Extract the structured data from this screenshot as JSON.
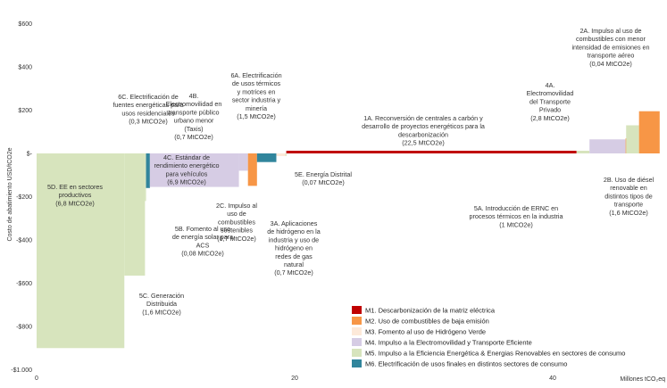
{
  "chart_data": {
    "type": "bar",
    "subtype": "marginal-abatement-cost-curve",
    "xlabel": "Millones tCO₂eq",
    "ylabel": "Costo de abatimiento  USD/tCO2e",
    "xlim": [
      0,
      49
    ],
    "ylim": [
      -1000,
      600
    ],
    "x_ticks": [
      {
        "value": 0,
        "label": "0"
      },
      {
        "value": 20,
        "label": "20"
      },
      {
        "value": 40,
        "label": "40"
      }
    ],
    "y_ticks": [
      {
        "value": 600,
        "label": "$600"
      },
      {
        "value": 400,
        "label": "$400"
      },
      {
        "value": 200,
        "label": "$200"
      },
      {
        "value": 0,
        "label": "$-"
      },
      {
        "value": -200,
        "label": "-$200"
      },
      {
        "value": -400,
        "label": "-$400"
      },
      {
        "value": -600,
        "label": "-$600"
      },
      {
        "value": -800,
        "label": "-$800"
      },
      {
        "value": -1000,
        "label": "-$1.000"
      }
    ],
    "grid": false,
    "legend_position": "bottom-right",
    "series": [
      {
        "key": "M1",
        "name": "M1. Descarbonización de la matriz eléctrica",
        "color": "#c00000"
      },
      {
        "key": "M2",
        "name": "M2. Uso de combustibles de baja emisión",
        "color": "#f79646"
      },
      {
        "key": "M3",
        "name": "M3. Fomento al uso de Hidrógeno Verde",
        "color": "#fde9d9"
      },
      {
        "key": "M4",
        "name": "M4. Impulso a la Electromovilidad y Transporte Eficiente",
        "color": "#d6cce4"
      },
      {
        "key": "M5",
        "name": "M5. Impulso a la Eficiencia Energética & Energias Renovables en sectores de consumo",
        "color": "#d7e4bd"
      },
      {
        "key": "M6",
        "name": "M6. Electrificación de usos finales en distintos sectores de consumo",
        "color": "#31859c"
      }
    ],
    "bars": [
      {
        "id": "5d",
        "series": "M5",
        "width": 6.8,
        "value": -900,
        "label": [
          "5D. EE en sectores",
          "productivos",
          "(6,8 MtCO2e)"
        ]
      },
      {
        "id": "5c",
        "series": "M5",
        "width": 1.6,
        "value": -565,
        "label": [
          "5C. Generación",
          "Distribuida",
          "(1,6 MtCO2e)"
        ]
      },
      {
        "id": "5b",
        "series": "M5",
        "width": 0.08,
        "value": -220,
        "label": [
          "5B. Fomento al uso",
          "de energía solar para",
          "ACS",
          "(0,08 MtCO2e)"
        ]
      },
      {
        "id": "6c",
        "series": "M6",
        "width": 0.3,
        "value": -160,
        "label": [
          "6C. Electrificación de",
          "fuentes energéticas para",
          "usos residenciales",
          "(0,3 MtCO2e)"
        ]
      },
      {
        "id": "4c",
        "series": "M4",
        "width": 6.9,
        "value": -155,
        "label": [
          "4C. Estándar de",
          "rendimiento energético",
          "para vehículos",
          "(6,9 MtCO2e)"
        ]
      },
      {
        "id": "4b",
        "series": "M4",
        "width": 0.7,
        "value": -80,
        "label": [
          "4B.",
          "Electromovilidad en",
          "transporte público",
          "urbano menor",
          "(Taxis)",
          "(0,7 MtCO2e)"
        ]
      },
      {
        "id": "2c",
        "series": "M2",
        "width": 0.7,
        "value": -150,
        "label": [
          "2C. Impulso al",
          "uso de",
          "combustibles",
          "sostenibles",
          "(0,7 MtCO2e)"
        ]
      },
      {
        "id": "6a",
        "series": "M6",
        "width": 1.5,
        "value": -40,
        "label": [
          "6A. Electrificación",
          "de usos térmicos",
          "y motrices en",
          "sector industria y",
          "minería",
          "(1,5 MtCO2e)"
        ]
      },
      {
        "id": "3a",
        "series": "M3",
        "width": 0.7,
        "value": -5,
        "label": [
          "3A. Aplicaciones",
          "de hidrógeno en la",
          "industria y uso de",
          "hidrógeno en",
          "redes de gas",
          "natural",
          "(0,7 MtCO2e)"
        ]
      },
      {
        "id": "5e",
        "series": "M5",
        "width": 0.07,
        "value": -5,
        "label": [
          "5E. Energía Distrital",
          "(0,07 MtCO2e)"
        ]
      },
      {
        "id": "1a",
        "series": "M1",
        "width": 22.5,
        "value": 10,
        "label": [
          "1A. Reconversión de centrales a carbón y",
          "desarrollo de proyectos energéticos para la",
          "descarbonización",
          "(22,5 MtCO2e)"
        ]
      },
      {
        "id": "5a",
        "series": "M5",
        "width": 1.0,
        "value": 5,
        "label": [
          "5A. Introducción de ERNC en",
          "procesos térmicos en la industria",
          "(1 MtCO2e)"
        ]
      },
      {
        "id": "4a",
        "series": "M4",
        "width": 2.8,
        "value": 65,
        "label": [
          "4A.",
          "Electromovilidad",
          "del Transporte",
          "Privado",
          "(2,8 MtCO2e)"
        ]
      },
      {
        "id": "2a",
        "series": "M2",
        "width": 0.04,
        "value": 70,
        "label": [
          "2A. Impulso al uso de",
          "combustibles con menor",
          "intensidad de emisiones en",
          "transporte aéreo",
          "(0,04 MtCO2e)"
        ]
      },
      {
        "id": "5x",
        "series": "M5",
        "width": 1.0,
        "value": 130,
        "label": []
      },
      {
        "id": "2b",
        "series": "M2",
        "width": 1.6,
        "value": 195,
        "label": [
          "2B. Uso de diésel",
          "renovable en",
          "distintos tipos de",
          "transporte",
          "(1,6 MtCO2e)"
        ]
      }
    ]
  }
}
